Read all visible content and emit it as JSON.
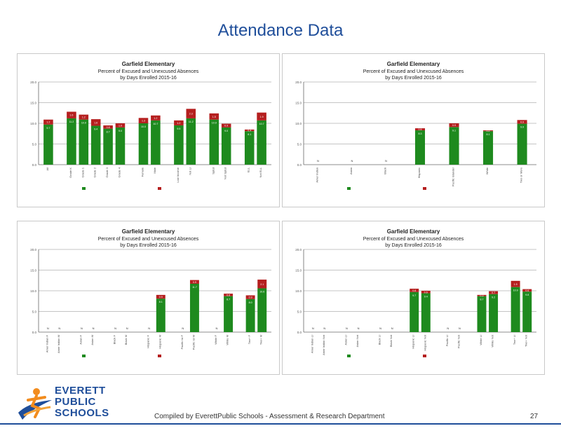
{
  "slide": {
    "title": "Attendance Data",
    "footer": "Compiled  by EverettPublic Schools - Assessment & Research Department",
    "page_number": "27"
  },
  "logo": {
    "line1": "EVERETT",
    "line2": "PUBLIC",
    "line3": "SCHOOLS"
  },
  "colors": {
    "excused": "#1e8a1e",
    "unexcused": "#b51f1f",
    "title_blue": "#1f4e9a"
  },
  "chart_data": [
    {
      "type": "bar",
      "stacked": true,
      "title": "Garfield Elementary",
      "subtitle_line1": "Percent of Excused and Unexcused Absences",
      "subtitle_line2": "by Days Enrolled 2015-16",
      "ylim": [
        0,
        20
      ],
      "yticks": [
        "0.0",
        "5.0",
        "10.0",
        "15.0",
        "20.0"
      ],
      "categories": [
        "All",
        "Grade K",
        "Grade 1",
        "Grade 2",
        "Grade 3",
        "Grade 4",
        "Female",
        "Male",
        "Low Income",
        "Not LI",
        "SpEd",
        "Not SpEd",
        "ELL",
        "Not ELL"
      ],
      "groups": [
        1,
        5,
        2,
        2,
        2,
        2
      ],
      "series": [
        {
          "key": "excused",
          "values": [
            9.7,
            11.2,
            10.9,
            9.4,
            8.7,
            9.0,
            10.0,
            10.7,
            9.5,
            11.2,
            10.9,
            9.0,
            8.1,
            10.7
          ]
        },
        {
          "key": "unexcused",
          "values": [
            1.2,
            1.6,
            1.2,
            1.6,
            0.8,
            1.0,
            1.3,
            1.2,
            1.2,
            2.3,
            1.5,
            0.9,
            0.4,
            1.9
          ]
        }
      ],
      "grid": true
    },
    {
      "type": "bar",
      "stacked": true,
      "title": "Garfield Elementary",
      "subtitle_line1": "Percent of Excused and Unexcused Absences",
      "subtitle_line2": "by Days Enrolled 2015-16",
      "ylim": [
        0,
        20
      ],
      "yticks": [
        "0.0",
        "5.0",
        "10.0",
        "15.0",
        "20.0"
      ],
      "categories": [
        "Amer Indian",
        "Asian",
        "Black",
        "Hispanic",
        "Pacific Islander",
        "White",
        "Two or More"
      ],
      "groups": [
        1,
        1,
        1,
        1,
        1,
        1,
        1
      ],
      "series": [
        {
          "key": "excused",
          "values": [
            null,
            null,
            null,
            8.3,
            9.1,
            8.1,
            9.9
          ]
        },
        {
          "key": "unexcused",
          "values": [
            null,
            null,
            null,
            0.5,
            0.9,
            0.2,
            0.9
          ]
        }
      ],
      "na_labels": [
        "N",
        "N",
        "N",
        "",
        "",
        "",
        ""
      ],
      "grid": true
    },
    {
      "type": "bar",
      "stacked": true,
      "title": "Garfield Elementary",
      "subtitle_line1": "Percent of Excused and Unexcused Absences",
      "subtitle_line2": "by Days Enrolled 2015-16",
      "ylim": [
        0,
        20
      ],
      "yticks": [
        "0.0",
        "5.0",
        "10.0",
        "15.0",
        "20.0"
      ],
      "categories": [
        "Amer Indian F",
        "Amer Indian M",
        "Asian F",
        "Asian M",
        "Black F",
        "Black M",
        "Hispanic F",
        "Hispanic M",
        "Pacific Isl F",
        "Pacific Isl M",
        "White F",
        "White M",
        "Two+ F",
        "Two+ M"
      ],
      "groups": [
        2,
        2,
        2,
        2,
        2,
        2,
        2
      ],
      "series": [
        {
          "key": "excused",
          "values": [
            null,
            null,
            null,
            null,
            null,
            null,
            null,
            8.1,
            null,
            11.7,
            null,
            8.7,
            8.0,
            10.6
          ]
        },
        {
          "key": "unexcused",
          "values": [
            null,
            null,
            null,
            null,
            null,
            null,
            null,
            0.9,
            null,
            0.9,
            null,
            0.6,
            0.9,
            2.1
          ]
        }
      ],
      "na_labels": [
        "N",
        "N",
        "N",
        "N",
        "N",
        "N",
        "N",
        "",
        "N",
        "",
        "N",
        "",
        "",
        ""
      ],
      "grid": true
    },
    {
      "type": "bar",
      "stacked": true,
      "title": "Garfield Elementary",
      "subtitle_line1": "Percent of Excused and Unexcused Absences",
      "subtitle_line2": "by Days Enrolled 2015-16",
      "ylim": [
        0,
        20
      ],
      "yticks": [
        "0.0",
        "5.0",
        "10.0",
        "15.0",
        "20.0"
      ],
      "categories": [
        "Amer Indian LI",
        "Amer Indian Not",
        "Asian LI",
        "Asian Not",
        "Black LI",
        "Black Not",
        "Hispanic LI",
        "Hispanic Not",
        "Pacific LI",
        "Pacific Not",
        "White LI",
        "White Not",
        "Two+ LI",
        "Two+ Not"
      ],
      "groups": [
        2,
        2,
        2,
        2,
        2,
        2,
        2
      ],
      "series": [
        {
          "key": "excused",
          "values": [
            null,
            null,
            null,
            null,
            null,
            null,
            9.7,
            9.4,
            null,
            null,
            8.7,
            9.2,
            10.9,
            9.8
          ]
        },
        {
          "key": "unexcused",
          "values": [
            null,
            null,
            null,
            null,
            null,
            null,
            0.8,
            0.6,
            null,
            null,
            0.3,
            0.7,
            1.5,
            0.6
          ]
        }
      ],
      "na_labels": [
        "N",
        "N",
        "N",
        "N",
        "N",
        "N",
        "",
        "",
        "N",
        "N",
        "",
        "",
        "",
        ""
      ],
      "grid": true
    }
  ]
}
